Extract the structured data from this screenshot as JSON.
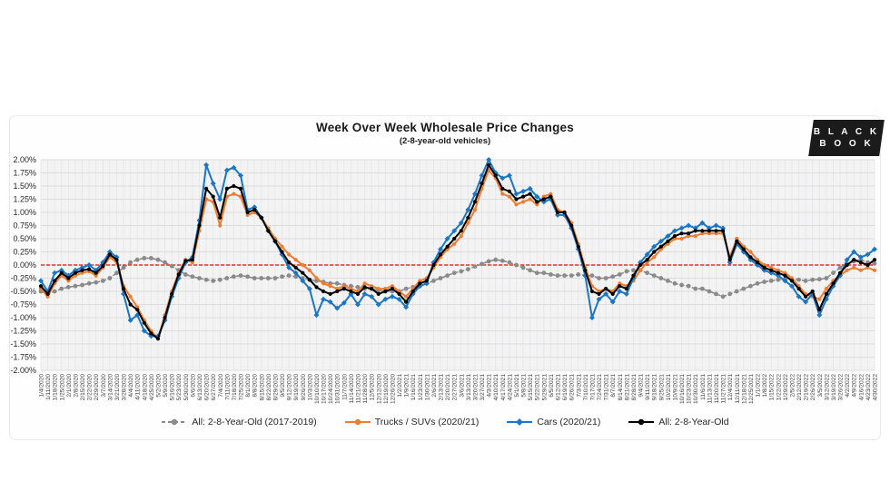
{
  "logo": {
    "line1": "B L A C K",
    "line2": "B O O K",
    "bg": "#1b1b1b",
    "text_color": "#ffffff"
  },
  "chart_data": {
    "type": "line",
    "title": "Week Over Week Wholesale Price Changes",
    "subtitle": "(2-8-year-old vehicles)",
    "xlabel": "",
    "ylabel": "",
    "ylim": [
      -2.0,
      2.0
    ],
    "ytick_step": 0.25,
    "ytick_suffix": "%",
    "grid": true,
    "plot_bg": "#f3f3f4",
    "vgrid_color": "#e8e8e9",
    "hgrid_color": "#dcdcdd",
    "zero_line_color": "#ff0000",
    "axis_text_color": "#262626",
    "legend_position": "bottom",
    "x": [
      "1/4/2020",
      "1/11/2020",
      "1/18/2020",
      "1/25/2020",
      "2/1/2020",
      "2/8/2020",
      "2/15/2020",
      "2/22/2020",
      "2/29/2020",
      "3/7/2020",
      "3/14/2020",
      "3/21/2020",
      "3/28/2020",
      "4/4/2020",
      "4/11/2020",
      "4/18/2020",
      "4/25/2020",
      "5/2/2020",
      "5/9/2020",
      "5/16/2020",
      "5/23/2020",
      "5/30/2020",
      "6/6/2020",
      "6/13/2020",
      "6/20/2020",
      "6/27/2020",
      "7/4/2020",
      "7/11/2020",
      "7/18/2020",
      "7/25/2020",
      "8/1/2020",
      "8/8/2020",
      "8/15/2020",
      "8/22/2020",
      "8/29/2020",
      "9/5/2020",
      "9/12/2020",
      "9/19/2020",
      "9/26/2020",
      "10/3/2020",
      "10/10/2020",
      "10/17/2020",
      "10/24/2020",
      "10/31/2020",
      "11/7/2020",
      "11/14/2020",
      "11/21/2020",
      "11/28/2020",
      "12/5/2020",
      "12/12/2020",
      "12/19/2020",
      "12/26/2020",
      "1/2/2021",
      "1/9/2021",
      "1/16/2021",
      "1/23/2021",
      "1/30/2021",
      "2/6/2021",
      "2/13/2021",
      "2/20/2021",
      "2/27/2021",
      "3/6/2021",
      "3/13/2021",
      "3/20/2021",
      "3/27/2021",
      "4/3/2021",
      "4/10/2021",
      "4/17/2021",
      "4/24/2021",
      "5/1/2021",
      "5/8/2021",
      "5/15/2021",
      "5/22/2021",
      "5/29/2021",
      "6/5/2021",
      "6/12/2021",
      "6/19/2021",
      "6/26/2021",
      "7/3/2021",
      "7/10/2021",
      "7/17/2021",
      "7/24/2021",
      "7/31/2021",
      "8/7/2021",
      "8/14/2021",
      "8/21/2021",
      "8/28/2021",
      "9/4/2021",
      "9/11/2021",
      "9/18/2021",
      "9/25/2021",
      "10/2/2021",
      "10/9/2021",
      "10/16/2021",
      "10/23/2021",
      "10/30/2021",
      "11/6/2021",
      "11/13/2021",
      "11/20/2021",
      "11/27/2021",
      "12/4/2021",
      "12/11/2021",
      "12/18/2021",
      "12/25/2021",
      "1/1/2022",
      "1/8/2022",
      "1/15/2022",
      "1/22/2022",
      "1/29/2022",
      "2/5/2022",
      "2/12/2022",
      "2/19/2022",
      "2/26/2022",
      "3/5/2022",
      "3/12/2022",
      "3/19/2022",
      "3/26/2022",
      "4/2/2022",
      "4/9/2022",
      "4/16/2022",
      "4/23/2022",
      "4/30/2022"
    ],
    "series": [
      {
        "key": "all-2017-2019",
        "name": "All: 2-8-Year-Old (2017-2019)",
        "color": "#8a8a8a",
        "style": "dashed",
        "marker": "circle",
        "values": [
          -0.5,
          -0.55,
          -0.5,
          -0.45,
          -0.42,
          -0.4,
          -0.38,
          -0.35,
          -0.33,
          -0.3,
          -0.25,
          -0.15,
          -0.05,
          0.05,
          0.1,
          0.13,
          0.13,
          0.1,
          0.05,
          -0.02,
          -0.1,
          -0.18,
          -0.22,
          -0.25,
          -0.28,
          -0.3,
          -0.28,
          -0.25,
          -0.22,
          -0.2,
          -0.22,
          -0.25,
          -0.25,
          -0.25,
          -0.25,
          -0.22,
          -0.2,
          -0.22,
          -0.25,
          -0.28,
          -0.3,
          -0.32,
          -0.35,
          -0.35,
          -0.38,
          -0.4,
          -0.42,
          -0.45,
          -0.45,
          -0.48,
          -0.5,
          -0.5,
          -0.5,
          -0.45,
          -0.42,
          -0.4,
          -0.35,
          -0.3,
          -0.25,
          -0.2,
          -0.15,
          -0.12,
          -0.08,
          -0.03,
          0.02,
          0.07,
          0.1,
          0.08,
          0.05,
          0.0,
          -0.05,
          -0.1,
          -0.15,
          -0.15,
          -0.18,
          -0.2,
          -0.2,
          -0.2,
          -0.18,
          -0.2,
          -0.2,
          -0.25,
          -0.25,
          -0.22,
          -0.18,
          -0.12,
          -0.1,
          -0.1,
          -0.15,
          -0.2,
          -0.25,
          -0.3,
          -0.35,
          -0.38,
          -0.4,
          -0.45,
          -0.45,
          -0.5,
          -0.55,
          -0.6,
          -0.55,
          -0.5,
          -0.45,
          -0.4,
          -0.35,
          -0.32,
          -0.3,
          -0.28,
          -0.27,
          -0.27,
          -0.28,
          -0.3,
          -0.28,
          -0.27,
          -0.25,
          -0.15,
          -0.05,
          0.02,
          0.07,
          0.1,
          0.05,
          0.03
        ]
      },
      {
        "key": "trucks-suvs",
        "name": "Trucks / SUVs (2020/21)",
        "color": "#ed7d31",
        "style": "solid",
        "marker": "circle",
        "values": [
          -0.45,
          -0.6,
          -0.35,
          -0.2,
          -0.3,
          -0.2,
          -0.15,
          -0.12,
          -0.2,
          -0.05,
          0.15,
          0.05,
          -0.4,
          -0.6,
          -0.8,
          -1.05,
          -1.25,
          -1.4,
          -0.95,
          -0.5,
          -0.15,
          0.1,
          0.05,
          0.65,
          1.25,
          1.2,
          0.75,
          1.3,
          1.35,
          1.3,
          0.95,
          1.0,
          0.9,
          0.7,
          0.5,
          0.35,
          0.2,
          0.1,
          0.0,
          -0.1,
          -0.25,
          -0.35,
          -0.4,
          -0.45,
          -0.4,
          -0.45,
          -0.5,
          -0.35,
          -0.4,
          -0.45,
          -0.45,
          -0.4,
          -0.5,
          -0.6,
          -0.45,
          -0.3,
          -0.25,
          -0.05,
          0.15,
          0.3,
          0.4,
          0.55,
          0.8,
          1.05,
          1.45,
          1.8,
          1.65,
          1.35,
          1.3,
          1.15,
          1.2,
          1.25,
          1.15,
          1.3,
          1.35,
          1.05,
          1.0,
          0.8,
          0.4,
          -0.05,
          -0.4,
          -0.5,
          -0.45,
          -0.5,
          -0.35,
          -0.4,
          -0.3,
          -0.1,
          0.05,
          0.15,
          0.3,
          0.4,
          0.5,
          0.5,
          0.55,
          0.55,
          0.6,
          0.6,
          0.6,
          0.6,
          0.15,
          0.5,
          0.35,
          0.25,
          0.1,
          0.0,
          -0.05,
          -0.1,
          -0.15,
          -0.25,
          -0.4,
          -0.55,
          -0.6,
          -0.65,
          -0.45,
          -0.3,
          -0.2,
          -0.1,
          -0.05,
          -0.1,
          -0.05,
          -0.1
        ]
      },
      {
        "key": "cars",
        "name": "Cars (2020/21)",
        "color": "#1b76c5",
        "style": "solid",
        "marker": "diamond",
        "values": [
          -0.3,
          -0.5,
          -0.15,
          -0.1,
          -0.2,
          -0.1,
          -0.05,
          0.0,
          -0.1,
          0.05,
          0.25,
          0.15,
          -0.55,
          -1.05,
          -0.95,
          -1.25,
          -1.35,
          -1.35,
          -1.05,
          -0.6,
          -0.25,
          0.05,
          0.15,
          0.85,
          1.9,
          1.55,
          1.25,
          1.8,
          1.85,
          1.7,
          1.05,
          1.1,
          0.9,
          0.65,
          0.45,
          0.2,
          -0.05,
          -0.15,
          -0.3,
          -0.45,
          -0.95,
          -0.65,
          -0.7,
          -0.82,
          -0.72,
          -0.55,
          -0.75,
          -0.55,
          -0.6,
          -0.75,
          -0.65,
          -0.6,
          -0.65,
          -0.8,
          -0.55,
          -0.4,
          -0.35,
          0.05,
          0.3,
          0.5,
          0.65,
          0.8,
          1.05,
          1.35,
          1.7,
          2.0,
          1.75,
          1.65,
          1.7,
          1.35,
          1.4,
          1.45,
          1.3,
          1.2,
          1.25,
          0.95,
          0.95,
          0.7,
          0.3,
          -0.2,
          -1.0,
          -0.65,
          -0.55,
          -0.7,
          -0.5,
          -0.55,
          -0.25,
          0.05,
          0.2,
          0.35,
          0.45,
          0.55,
          0.65,
          0.7,
          0.75,
          0.7,
          0.8,
          0.7,
          0.75,
          0.7,
          0.05,
          0.4,
          0.25,
          0.1,
          0.0,
          -0.1,
          -0.15,
          -0.2,
          -0.3,
          -0.4,
          -0.6,
          -0.7,
          -0.55,
          -0.95,
          -0.65,
          -0.4,
          -0.2,
          0.1,
          0.25,
          0.15,
          0.2,
          0.3
        ]
      },
      {
        "key": "all-2020-21",
        "name": "All: 2-8-Year-Old",
        "color": "#000000",
        "style": "solid",
        "marker": "circle",
        "values": [
          -0.4,
          -0.55,
          -0.3,
          -0.15,
          -0.25,
          -0.15,
          -0.1,
          -0.08,
          -0.15,
          -0.02,
          0.2,
          0.1,
          -0.45,
          -0.75,
          -0.85,
          -1.1,
          -1.3,
          -1.4,
          -1.0,
          -0.55,
          -0.18,
          0.08,
          0.1,
          0.75,
          1.45,
          1.3,
          0.9,
          1.45,
          1.5,
          1.45,
          1.0,
          1.05,
          0.9,
          0.65,
          0.45,
          0.25,
          0.05,
          -0.05,
          -0.15,
          -0.28,
          -0.42,
          -0.5,
          -0.55,
          -0.5,
          -0.45,
          -0.5,
          -0.55,
          -0.42,
          -0.45,
          -0.55,
          -0.5,
          -0.45,
          -0.55,
          -0.7,
          -0.5,
          -0.35,
          -0.3,
          0.0,
          0.2,
          0.35,
          0.5,
          0.65,
          0.9,
          1.2,
          1.55,
          1.9,
          1.7,
          1.45,
          1.4,
          1.25,
          1.3,
          1.35,
          1.2,
          1.25,
          1.3,
          1.0,
          1.0,
          0.75,
          0.35,
          -0.1,
          -0.5,
          -0.55,
          -0.45,
          -0.55,
          -0.4,
          -0.45,
          -0.2,
          0.0,
          0.1,
          0.25,
          0.35,
          0.45,
          0.55,
          0.6,
          0.6,
          0.65,
          0.65,
          0.65,
          0.65,
          0.65,
          0.1,
          0.45,
          0.3,
          0.15,
          0.05,
          -0.05,
          -0.1,
          -0.15,
          -0.2,
          -0.3,
          -0.45,
          -0.6,
          -0.5,
          -0.85,
          -0.55,
          -0.35,
          -0.15,
          0.0,
          0.1,
          0.05,
          0.0,
          0.1
        ]
      }
    ]
  }
}
